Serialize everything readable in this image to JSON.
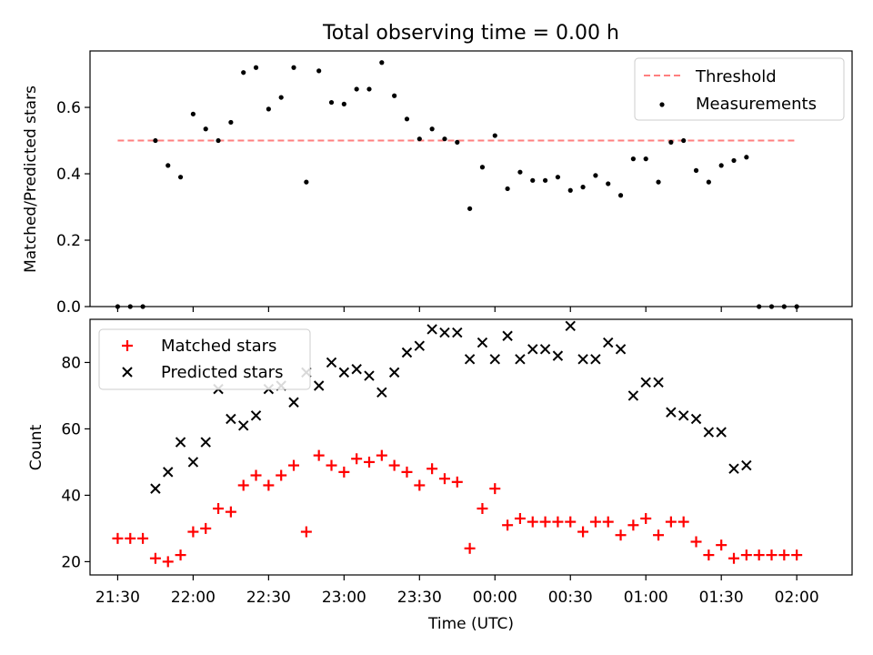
{
  "chart_data": [
    {
      "type": "scatter",
      "title": "Total observing time = 0.00 h",
      "xlabel": "",
      "ylabel": "Matched/Predicted stars",
      "xlim_minutes": [
        1279,
        1582
      ],
      "ylim": [
        0,
        0.77
      ],
      "yticks": [
        0.0,
        0.2,
        0.4,
        0.6
      ],
      "ytick_labels": [
        "0.0",
        "0.2",
        "0.4",
        "0.6"
      ],
      "legend_position": "upper-right",
      "threshold": {
        "name": "Threshold",
        "value": 0.5,
        "x_range": [
          1290,
          1560
        ],
        "color": "#ff7f7f"
      },
      "series": [
        {
          "name": "Measurements",
          "color": "#000000",
          "x": [
            1290,
            1295,
            1300,
            1305,
            1310,
            1315,
            1320,
            1325,
            1330,
            1335,
            1340,
            1345,
            1350,
            1355,
            1360,
            1365,
            1370,
            1375,
            1380,
            1385,
            1390,
            1395,
            1400,
            1405,
            1410,
            1415,
            1420,
            1425,
            1430,
            1435,
            1440,
            1445,
            1450,
            1455,
            1460,
            1465,
            1470,
            1475,
            1480,
            1485,
            1490,
            1495,
            1500,
            1505,
            1510,
            1515,
            1520,
            1525,
            1530,
            1535,
            1540,
            1545,
            1550,
            1555,
            1560
          ],
          "values": [
            0,
            0,
            0,
            0.5,
            0.425,
            0.39,
            0.58,
            0.535,
            0.5,
            0.555,
            0.705,
            0.72,
            0.595,
            0.63,
            0.72,
            0.375,
            0.71,
            0.615,
            0.61,
            0.655,
            0.655,
            0.735,
            0.635,
            0.565,
            0.505,
            0.535,
            0.505,
            0.495,
            0.295,
            0.42,
            0.515,
            0.355,
            0.405,
            0.38,
            0.38,
            0.39,
            0.35,
            0.36,
            0.395,
            0.37,
            0.335,
            0.445,
            0.445,
            0.375,
            0.495,
            0.5,
            0.41,
            0.375,
            0.425,
            0.44,
            0.45,
            0,
            0,
            0,
            0
          ]
        }
      ]
    },
    {
      "type": "scatter",
      "title": "",
      "xlabel": "Time (UTC)",
      "ylabel": "Count",
      "xlim_minutes": [
        1279,
        1582
      ],
      "ylim": [
        16,
        93
      ],
      "yticks": [
        20,
        40,
        60,
        80
      ],
      "xticks_minutes": [
        1290,
        1320,
        1350,
        1380,
        1410,
        1440,
        1470,
        1500,
        1530,
        1560
      ],
      "xtick_labels": [
        "21:30",
        "22:00",
        "22:30",
        "23:00",
        "23:30",
        "00:00",
        "00:30",
        "01:00",
        "01:30",
        "02:00"
      ],
      "legend_position": "upper-left",
      "series": [
        {
          "name": "Matched stars",
          "marker": "plus",
          "color": "#ff0000",
          "x": [
            1290,
            1295,
            1300,
            1305,
            1310,
            1315,
            1320,
            1325,
            1330,
            1335,
            1340,
            1345,
            1350,
            1355,
            1360,
            1365,
            1370,
            1375,
            1380,
            1385,
            1390,
            1395,
            1400,
            1405,
            1410,
            1415,
            1420,
            1425,
            1430,
            1435,
            1440,
            1445,
            1450,
            1455,
            1460,
            1465,
            1470,
            1475,
            1480,
            1485,
            1490,
            1495,
            1500,
            1505,
            1510,
            1515,
            1520,
            1525,
            1530,
            1535,
            1540,
            1545,
            1550,
            1555,
            1560
          ],
          "values": [
            27,
            27,
            27,
            21,
            20,
            22,
            29,
            30,
            36,
            35,
            43,
            46,
            43,
            46,
            49,
            29,
            52,
            49,
            47,
            51,
            50,
            52,
            49,
            47,
            43,
            48,
            45,
            44,
            24,
            36,
            42,
            31,
            33,
            32,
            32,
            32,
            32,
            29,
            32,
            32,
            28,
            31,
            33,
            28,
            32,
            32,
            26,
            22,
            25,
            21,
            22,
            22,
            22,
            22,
            22
          ]
        },
        {
          "name": "Predicted stars",
          "marker": "x",
          "color": "#000000",
          "x": [
            1305,
            1310,
            1315,
            1320,
            1325,
            1330,
            1335,
            1340,
            1345,
            1350,
            1355,
            1360,
            1365,
            1370,
            1375,
            1380,
            1385,
            1390,
            1395,
            1400,
            1405,
            1410,
            1415,
            1420,
            1425,
            1430,
            1435,
            1440,
            1445,
            1450,
            1455,
            1460,
            1465,
            1470,
            1475,
            1480,
            1485,
            1490,
            1495,
            1500,
            1505,
            1510,
            1515,
            1520,
            1525,
            1530,
            1535,
            1540
          ],
          "values": [
            42,
            47,
            56,
            50,
            56,
            72,
            63,
            61,
            64,
            72,
            73,
            68,
            77,
            73,
            80,
            77,
            78,
            76,
            71,
            77,
            83,
            85,
            90,
            89,
            89,
            81,
            86,
            81,
            88,
            81,
            84,
            84,
            82,
            91,
            81,
            81,
            86,
            84,
            70,
            74,
            74,
            65,
            64,
            63,
            59,
            59,
            48,
            49
          ]
        }
      ]
    }
  ]
}
